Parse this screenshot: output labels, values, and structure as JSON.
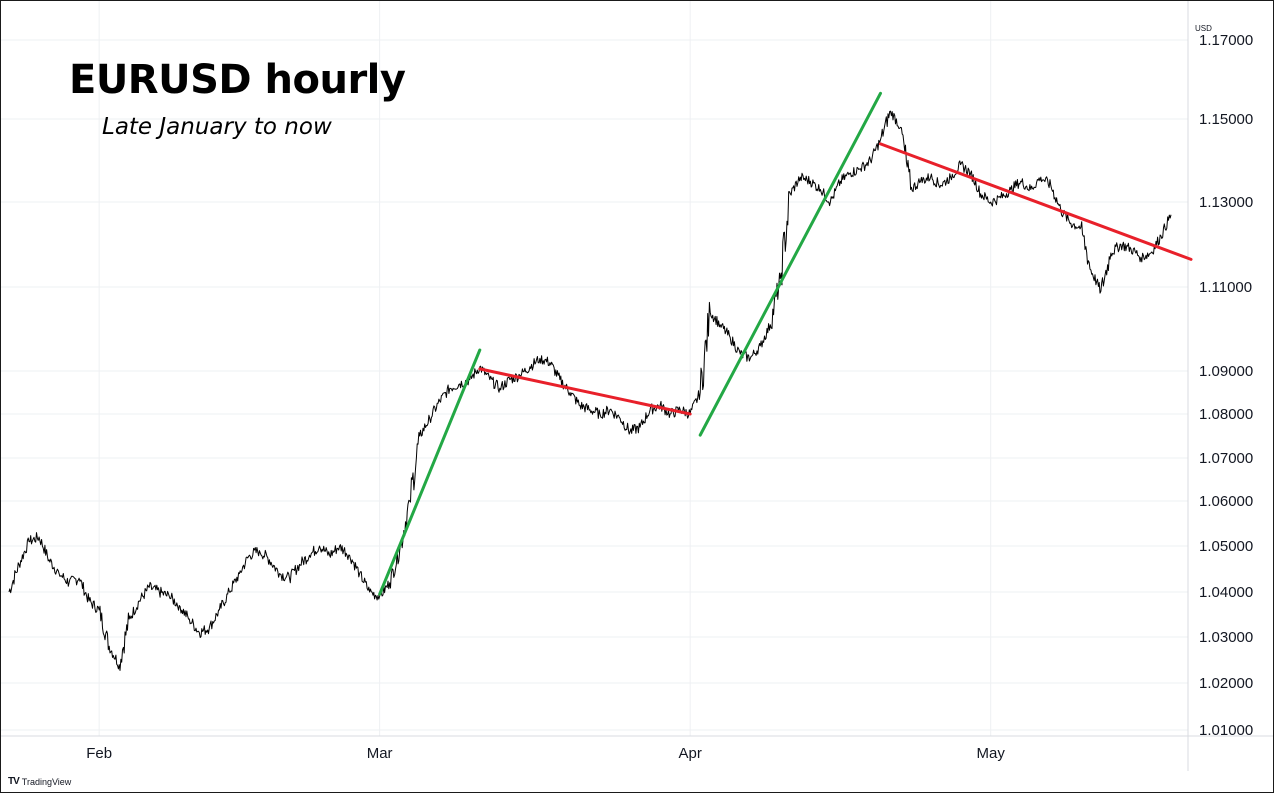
{
  "title": "EURUSD hourly",
  "subtitle": "Late January to now",
  "watermark": "TradingView",
  "watermark_logo": "TV",
  "chart_data": {
    "type": "line",
    "ylabel": "USD",
    "ylim": [
      1.006,
      1.172
    ],
    "y_ticks": [
      {
        "value": 1.01,
        "label": "1.01000"
      },
      {
        "value": 1.02,
        "label": "1.02000"
      },
      {
        "value": 1.03,
        "label": "1.03000"
      },
      {
        "value": 1.04,
        "label": "1.04000"
      },
      {
        "value": 1.05,
        "label": "1.05000"
      },
      {
        "value": 1.06,
        "label": "1.06000"
      },
      {
        "value": 1.07,
        "label": "1.07000"
      },
      {
        "value": 1.08,
        "label": "1.08000"
      },
      {
        "value": 1.09,
        "label": "1.09000"
      },
      {
        "value": 1.11,
        "label": "1.11000"
      },
      {
        "value": 1.13,
        "label": "1.13000"
      },
      {
        "value": 1.15,
        "label": "1.15000"
      },
      {
        "value": 1.17,
        "label": "1.17000"
      }
    ],
    "xlim": [
      "2025-01-23",
      "2025-05-19"
    ],
    "x_ticks": [
      {
        "date": "2025-02-01",
        "label": "Feb"
      },
      {
        "date": "2025-03-01",
        "label": "Mar"
      },
      {
        "date": "2025-04-01",
        "label": "Apr"
      },
      {
        "date": "2025-05-01",
        "label": "May"
      }
    ],
    "series": [
      {
        "color": "#000000",
        "points": [
          [
            "2025-01-23",
            1.04
          ],
          [
            "2025-01-24",
            1.046
          ],
          [
            "2025-01-25",
            1.051
          ],
          [
            "2025-01-26",
            1.052
          ],
          [
            "2025-01-27",
            1.047
          ],
          [
            "2025-01-28",
            1.044
          ],
          [
            "2025-01-29",
            1.042
          ],
          [
            "2025-01-30",
            1.043
          ],
          [
            "2025-01-31",
            1.038
          ],
          [
            "2025-02-01",
            1.036
          ],
          [
            "2025-02-02",
            1.028
          ],
          [
            "2025-02-03",
            1.024
          ],
          [
            "2025-02-04",
            1.034
          ],
          [
            "2025-02-05",
            1.038
          ],
          [
            "2025-02-06",
            1.041
          ],
          [
            "2025-02-07",
            1.04
          ],
          [
            "2025-02-08",
            1.039
          ],
          [
            "2025-02-09",
            1.037
          ],
          [
            "2025-02-10",
            1.034
          ],
          [
            "2025-02-11",
            1.031
          ],
          [
            "2025-02-12",
            1.032
          ],
          [
            "2025-02-13",
            1.036
          ],
          [
            "2025-02-14",
            1.04
          ],
          [
            "2025-02-15",
            1.044
          ],
          [
            "2025-02-16",
            1.048
          ],
          [
            "2025-02-17",
            1.049
          ],
          [
            "2025-02-18",
            1.047
          ],
          [
            "2025-02-19",
            1.044
          ],
          [
            "2025-02-20",
            1.043
          ],
          [
            "2025-02-21",
            1.046
          ],
          [
            "2025-02-22",
            1.048
          ],
          [
            "2025-02-23",
            1.05
          ],
          [
            "2025-02-24",
            1.048
          ],
          [
            "2025-02-25",
            1.05
          ],
          [
            "2025-02-26",
            1.048
          ],
          [
            "2025-02-27",
            1.044
          ],
          [
            "2025-02-28",
            1.04
          ],
          [
            "2025-03-01",
            1.039
          ],
          [
            "2025-03-02",
            1.042
          ],
          [
            "2025-03-03",
            1.049
          ],
          [
            "2025-03-04",
            1.06
          ],
          [
            "2025-03-05",
            1.075
          ],
          [
            "2025-03-06",
            1.079
          ],
          [
            "2025-03-07",
            1.083
          ],
          [
            "2025-03-08",
            1.086
          ],
          [
            "2025-03-09",
            1.087
          ],
          [
            "2025-03-10",
            1.088
          ],
          [
            "2025-03-11",
            1.091
          ],
          [
            "2025-03-12",
            1.088
          ],
          [
            "2025-03-13",
            1.086
          ],
          [
            "2025-03-14",
            1.088
          ],
          [
            "2025-03-15",
            1.089
          ],
          [
            "2025-03-16",
            1.091
          ],
          [
            "2025-03-17",
            1.093
          ],
          [
            "2025-03-18",
            1.092
          ],
          [
            "2025-03-19",
            1.088
          ],
          [
            "2025-03-20",
            1.085
          ],
          [
            "2025-03-21",
            1.082
          ],
          [
            "2025-03-22",
            1.081
          ],
          [
            "2025-03-23",
            1.08
          ],
          [
            "2025-03-24",
            1.081
          ],
          [
            "2025-03-25",
            1.079
          ],
          [
            "2025-03-26",
            1.076
          ],
          [
            "2025-03-27",
            1.077
          ],
          [
            "2025-03-28",
            1.081
          ],
          [
            "2025-03-29",
            1.082
          ],
          [
            "2025-03-30",
            1.08
          ],
          [
            "2025-03-31",
            1.081
          ],
          [
            "2025-04-01",
            1.08
          ],
          [
            "2025-04-02",
            1.085
          ],
          [
            "2025-04-03",
            1.104
          ],
          [
            "2025-04-04",
            1.101
          ],
          [
            "2025-04-05",
            1.098
          ],
          [
            "2025-04-06",
            1.094
          ],
          [
            "2025-04-07",
            1.093
          ],
          [
            "2025-04-08",
            1.096
          ],
          [
            "2025-04-09",
            1.101
          ],
          [
            "2025-04-10",
            1.112
          ],
          [
            "2025-04-11",
            1.132
          ],
          [
            "2025-04-12",
            1.136
          ],
          [
            "2025-04-13",
            1.135
          ],
          [
            "2025-04-14",
            1.133
          ],
          [
            "2025-04-15",
            1.13
          ],
          [
            "2025-04-16",
            1.135
          ],
          [
            "2025-04-17",
            1.137
          ],
          [
            "2025-04-18",
            1.138
          ],
          [
            "2025-04-19",
            1.14
          ],
          [
            "2025-04-20",
            1.145
          ],
          [
            "2025-04-21",
            1.152
          ],
          [
            "2025-04-22",
            1.148
          ],
          [
            "2025-04-23",
            1.133
          ],
          [
            "2025-04-24",
            1.135
          ],
          [
            "2025-04-25",
            1.136
          ],
          [
            "2025-04-26",
            1.134
          ],
          [
            "2025-04-27",
            1.136
          ],
          [
            "2025-04-28",
            1.139
          ],
          [
            "2025-04-29",
            1.137
          ],
          [
            "2025-04-30",
            1.132
          ],
          [
            "2025-05-01",
            1.13
          ],
          [
            "2025-05-02",
            1.131
          ],
          [
            "2025-05-03",
            1.133
          ],
          [
            "2025-05-04",
            1.135
          ],
          [
            "2025-05-05",
            1.133
          ],
          [
            "2025-05-06",
            1.136
          ],
          [
            "2025-05-07",
            1.134
          ],
          [
            "2025-05-08",
            1.128
          ],
          [
            "2025-05-09",
            1.125
          ],
          [
            "2025-05-10",
            1.124
          ],
          [
            "2025-05-11",
            1.114
          ],
          [
            "2025-05-12",
            1.109
          ],
          [
            "2025-05-13",
            1.118
          ],
          [
            "2025-05-14",
            1.12
          ],
          [
            "2025-05-15",
            1.119
          ],
          [
            "2025-05-16",
            1.117
          ],
          [
            "2025-05-17",
            1.118
          ],
          [
            "2025-05-18",
            1.122
          ],
          [
            "2025-05-19",
            1.127
          ]
        ]
      }
    ],
    "trendlines": [
      {
        "color": "#23a845",
        "start": [
          "2025-03-01",
          1.0395
        ],
        "end": [
          "2025-03-11",
          1.095
        ]
      },
      {
        "color": "#e8202a",
        "start": [
          "2025-03-11",
          1.0905
        ],
        "end": [
          "2025-04-01",
          1.08
        ]
      },
      {
        "color": "#23a845",
        "start": [
          "2025-04-02",
          1.0752
        ],
        "end": [
          "2025-04-20",
          1.1565
        ]
      },
      {
        "color": "#e8202a",
        "start": [
          "2025-04-20",
          1.144
        ],
        "end": [
          "2025-05-21",
          1.1165
        ]
      }
    ],
    "grid": true,
    "y_axis_position": "right"
  }
}
